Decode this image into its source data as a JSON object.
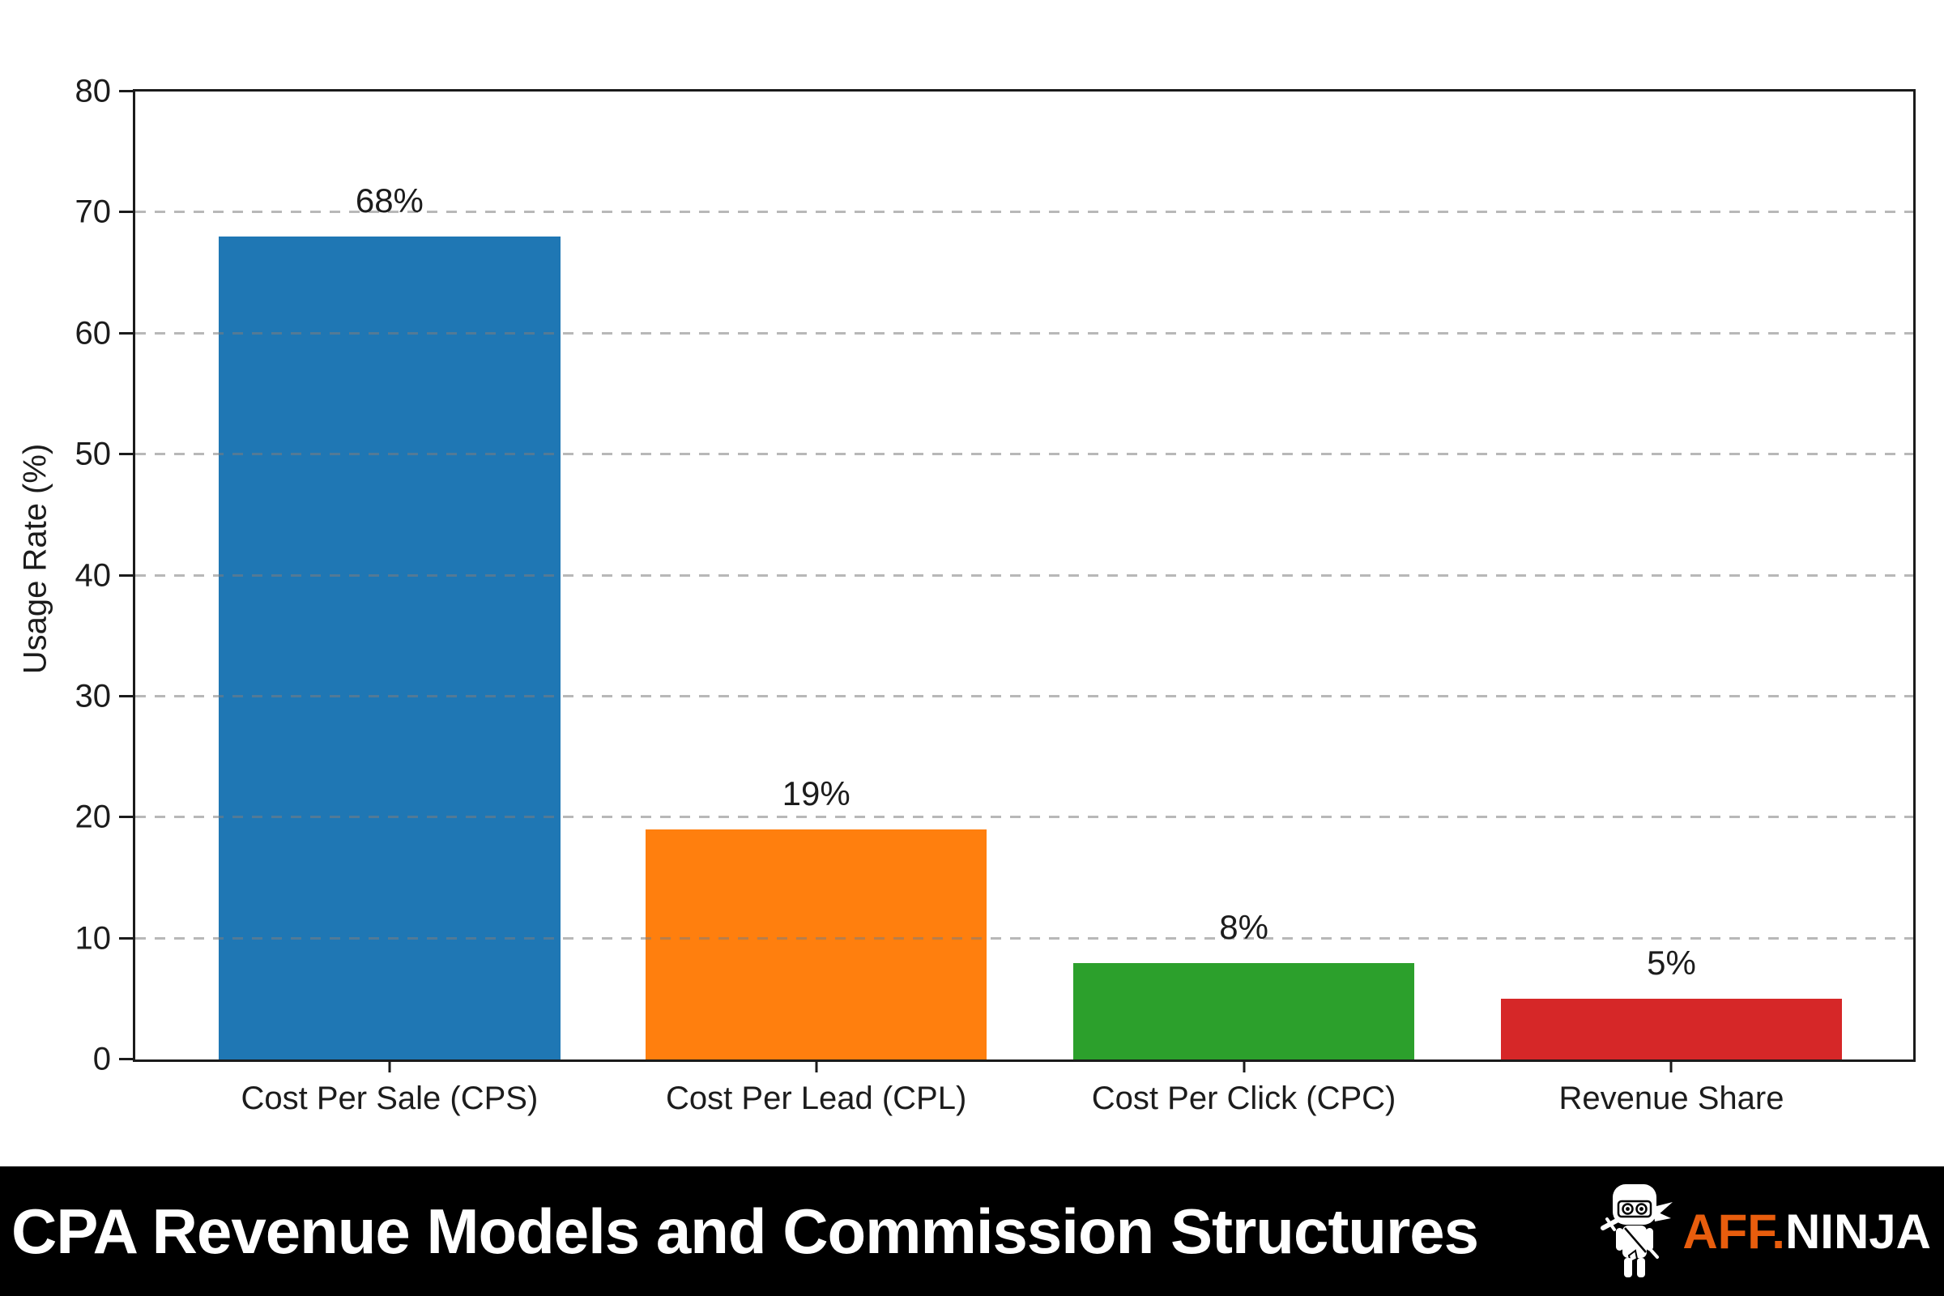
{
  "chart_data": {
    "type": "bar",
    "categories": [
      "Cost Per Sale (CPS)",
      "Cost Per Lead (CPL)",
      "Cost Per Click (CPC)",
      "Revenue Share"
    ],
    "values": [
      68,
      19,
      8,
      5
    ],
    "value_labels": [
      "68%",
      "19%",
      "8%",
      "5%"
    ],
    "bar_colors": [
      "#1f77b4",
      "#ff7f0e",
      "#2ca02c",
      "#d62728"
    ],
    "title": "",
    "xlabel": "",
    "ylabel": "Usage Rate (%)",
    "ylim": [
      0,
      80
    ],
    "ytick_step": 10,
    "ytick_labels": [
      "0",
      "10",
      "20",
      "30",
      "40",
      "50",
      "60",
      "70",
      "80"
    ],
    "grid": "horizontal-dashed",
    "gridline_color": "#7d7d7d",
    "legend": "none"
  },
  "footer": {
    "title": "CPA Revenue Models and Commission Structures",
    "background_color": "#000000",
    "brand": {
      "icon": "ninja-icon",
      "prefix": "AFF.",
      "suffix": "NINJA",
      "prefix_color": "#E85D0D",
      "suffix_color": "#ffffff"
    }
  }
}
